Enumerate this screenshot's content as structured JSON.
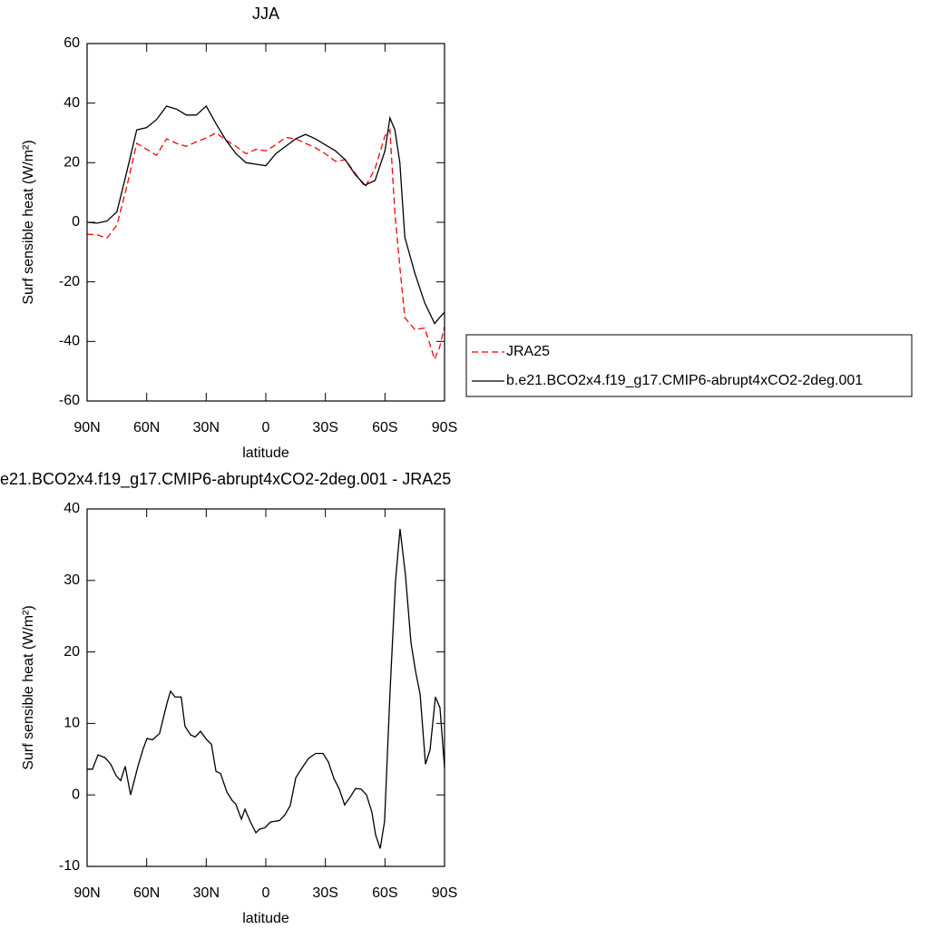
{
  "chart_data": [
    {
      "type": "line",
      "title": "JJA",
      "x_label": "latitude",
      "y_label": "Surf sensible heat (W/m²)",
      "x": [
        90,
        85,
        80,
        75,
        70,
        65,
        60,
        55,
        50,
        45,
        40,
        35,
        30,
        25,
        20,
        15,
        10,
        5,
        0,
        -5,
        -10,
        -15,
        -20,
        -25,
        -30,
        -35,
        -40,
        -45,
        -50,
        -55,
        -60,
        -62.5,
        -65,
        -67.5,
        -70,
        -75,
        -80,
        -85,
        -87.5,
        -90
      ],
      "series": [
        {
          "name": "JRA25",
          "color": "#ff0000",
          "style": "dashed",
          "values": [
            -4,
            -4.2,
            -5.3,
            -1,
            12,
            26.5,
            24.5,
            22.5,
            28,
            26.5,
            25.5,
            27,
            28.3,
            30,
            27.5,
            25.5,
            23,
            24.5,
            24,
            26,
            28.5,
            28,
            26.5,
            25,
            23,
            20.5,
            21,
            16.5,
            11.8,
            18,
            29,
            31,
            3,
            -15,
            -32,
            -36,
            -35.5,
            -46,
            -42,
            -35
          ]
        },
        {
          "name": "b.e21.BCO2x4.f19_g17.CMIP6-abrupt4xCO2-2deg.001",
          "color": "#000000",
          "style": "solid",
          "values": [
            0,
            -0.3,
            0.4,
            3.5,
            17,
            31,
            31.8,
            34.5,
            39,
            38,
            36,
            36,
            39,
            33,
            27.5,
            23,
            20,
            19.5,
            19,
            23,
            25.5,
            28,
            29.5,
            28,
            26,
            24,
            21,
            16,
            12.5,
            14,
            24,
            35,
            31,
            20,
            -5,
            -17,
            -27,
            -34,
            -32,
            -30.2
          ]
        }
      ],
      "xlim": [
        90,
        -90
      ],
      "xticks": [
        {
          "value": 90,
          "label": "90N"
        },
        {
          "value": 60,
          "label": "60N"
        },
        {
          "value": 30,
          "label": "30N"
        },
        0,
        {
          "value": -30,
          "label": "30S"
        },
        {
          "value": -60,
          "label": "60S"
        },
        {
          "value": -90,
          "label": "90S"
        }
      ],
      "ylim": [
        -60,
        60
      ],
      "yticks": [
        -60,
        -40,
        -20,
        0,
        20,
        40,
        60
      ],
      "legend": "right"
    },
    {
      "type": "line",
      "title": "e21.BCO2x4.f19_g17.CMIP6-abrupt4xCO2-2deg.001 - JRA25",
      "x_label": "latitude",
      "y_label": "Surf sensible heat (W/m²)",
      "x": [
        90,
        87.3,
        84.5,
        80.9,
        78.1,
        75.4,
        73.1,
        70.8,
        68.1,
        64.4,
        61.7,
        59.8,
        57.1,
        53.5,
        49.8,
        48.0,
        45.7,
        42.6,
        40.7,
        37.9,
        35.6,
        32.9,
        29.7,
        27.4,
        25.1,
        22.8,
        19.6,
        16.9,
        15.1,
        12.3,
        10.5,
        7.7,
        5.0,
        3.2,
        0.5,
        -2.3,
        -6.8,
        -9.6,
        -12.3,
        -15.1,
        -17.8,
        -21.5,
        -25.1,
        -28.8,
        -31.5,
        -34.3,
        -37.0,
        -39.7,
        -42.5,
        -45.2,
        -48.0,
        -50.7,
        -53.4,
        -55.3,
        -57.6,
        -59.8,
        -62.6,
        -65.3,
        -67.6,
        -70.3,
        -73.1,
        -75.4,
        -77.7,
        -80.4,
        -82.7,
        -85.4,
        -87.7,
        -90
      ],
      "values": [
        3.6,
        3.6,
        5.6,
        5.2,
        4.3,
        2.7,
        2,
        4,
        0,
        4,
        6.5,
        7.9,
        7.7,
        8.6,
        12.8,
        14.5,
        13.7,
        13.7,
        9.6,
        8.4,
        8.1,
        8.9,
        7.7,
        7.1,
        3.3,
        3,
        0.4,
        -0.8,
        -1.3,
        -3.4,
        -2,
        -3.8,
        -5.3,
        -4.8,
        -4.6,
        -3.8,
        -3.6,
        -2.8,
        -1.5,
        2.4,
        3.6,
        5.1,
        5.8,
        5.8,
        4.6,
        2.3,
        0.8,
        -1.4,
        -0.3,
        0.9,
        0.8,
        0,
        -2.4,
        -5.6,
        -7.5,
        -3.7,
        14.7,
        29.9,
        37.2,
        30.8,
        21.3,
        17.3,
        14.1,
        4.3,
        6.3,
        13.7,
        12.2,
        3.8
      ],
      "color": "#000000",
      "xlim": [
        90,
        -90
      ],
      "xticks": [
        {
          "value": 90,
          "label": "90N"
        },
        {
          "value": 60,
          "label": "60N"
        },
        {
          "value": 30,
          "label": "30N"
        },
        0,
        {
          "value": -30,
          "label": "30S"
        },
        {
          "value": -60,
          "label": "60S"
        },
        {
          "value": -90,
          "label": "90S"
        }
      ],
      "ylim": [
        -10,
        40
      ],
      "yticks": [
        -10,
        0,
        10,
        20,
        30,
        40
      ]
    }
  ]
}
